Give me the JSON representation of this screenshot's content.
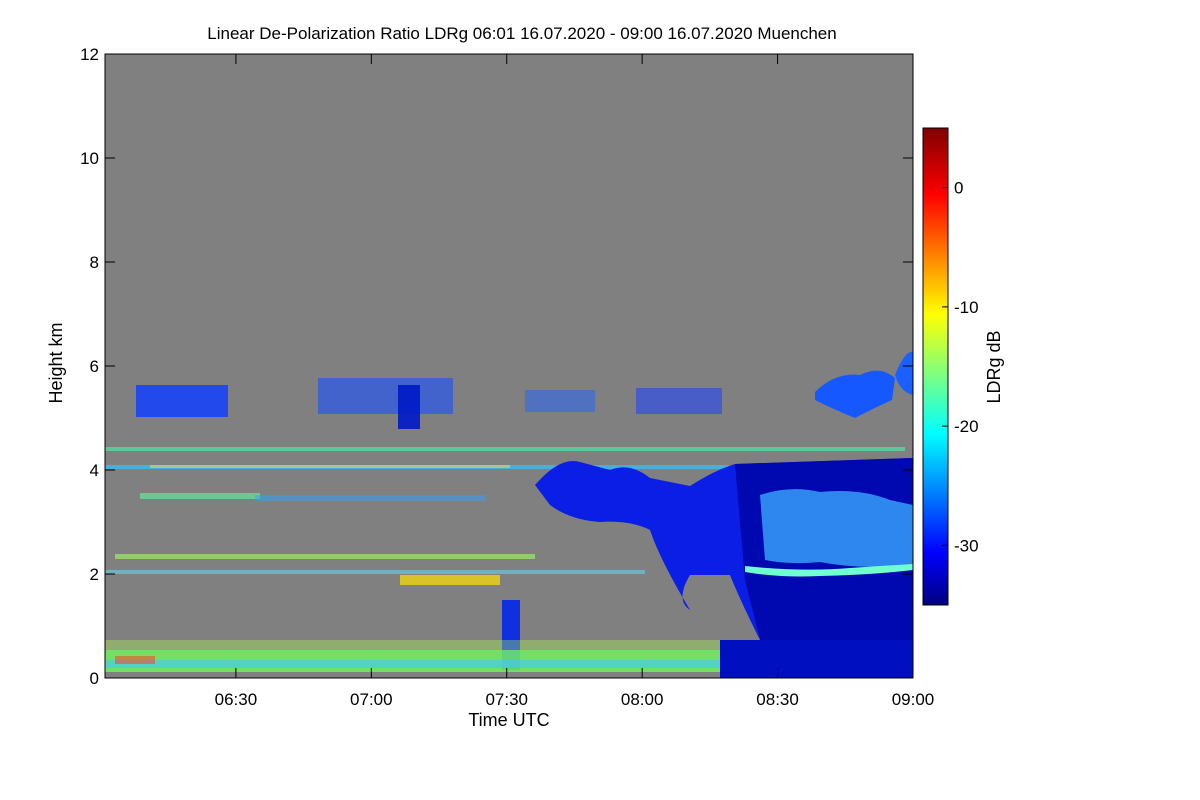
{
  "chart_data": {
    "type": "heatmap",
    "title": "Linear De-Polarization Ratio LDRg   06:01 16.07.2020 - 09:00 16.07.2020 Muenchen",
    "xlabel": "Time UTC",
    "ylabel": "Height km",
    "colorbar_label": "LDRg dB",
    "xlim": [
      "06:01",
      "09:00"
    ],
    "ylim": [
      0,
      12
    ],
    "x_ticks": [
      "06:30",
      "07:00",
      "07:30",
      "08:00",
      "08:30",
      "09:00"
    ],
    "y_ticks": [
      0,
      2,
      4,
      6,
      8,
      10,
      12
    ],
    "colorbar_range": [
      -35,
      5
    ],
    "colorbar_ticks": [
      0,
      -10,
      -20,
      -30
    ],
    "colormap": "jet",
    "no_data_color": "#808080",
    "grid": false
  }
}
